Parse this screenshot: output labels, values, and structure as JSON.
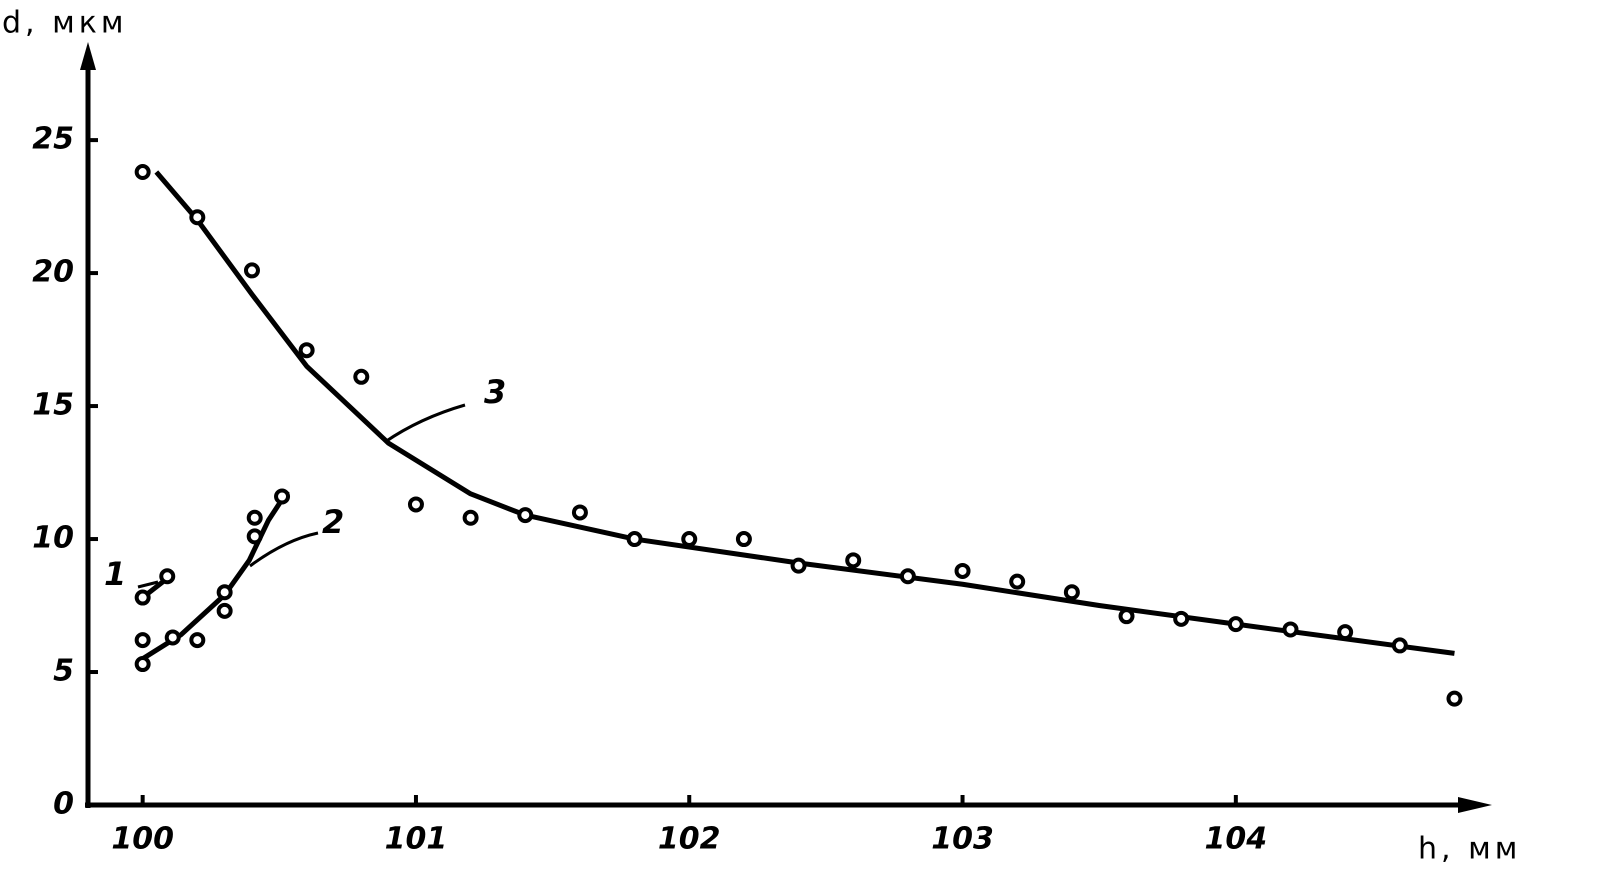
{
  "chart_data": {
    "type": "scatter",
    "x_label": "h, мм",
    "y_label": "d, мкм",
    "xlim": [
      99.8,
      104.93
    ],
    "ylim": [
      0,
      28.2
    ],
    "xticks": [
      100,
      101,
      102,
      103,
      104
    ],
    "yticks": [
      0,
      5,
      10,
      15,
      20,
      25
    ],
    "color": "#000000",
    "series": [
      {
        "name": "1",
        "points": {
          "x": [
            100.0,
            100.09
          ],
          "values": [
            7.8,
            8.6
          ]
        },
        "curve": {
          "x": [
            100.0,
            100.1
          ],
          "values": [
            7.8,
            8.6
          ]
        }
      },
      {
        "name": "2",
        "points": {
          "x": [
            100.0,
            100.0,
            100.11,
            100.2,
            100.3,
            100.3,
            100.41,
            100.41,
            100.51
          ],
          "values": [
            6.2,
            5.3,
            6.3,
            6.2,
            7.3,
            8.0,
            10.8,
            10.1,
            11.6
          ]
        },
        "curve": {
          "x": [
            100.0,
            100.14,
            100.3,
            100.39,
            100.46,
            100.53
          ],
          "values": [
            5.5,
            6.4,
            7.9,
            9.2,
            10.7,
            11.8
          ]
        }
      },
      {
        "name": "3",
        "points": {
          "x": [
            100.0,
            100.2,
            100.4,
            100.6,
            100.8,
            101.0,
            101.2,
            101.4,
            101.6,
            101.8,
            102.0,
            102.2,
            102.4,
            102.6,
            102.8,
            103.0,
            103.2,
            103.4,
            103.6,
            103.8,
            104.0,
            104.2,
            104.4,
            104.6,
            104.8
          ],
          "values": [
            23.8,
            22.1,
            20.1,
            17.1,
            16.1,
            11.3,
            10.8,
            10.9,
            11.0,
            10.0,
            10.0,
            10.0,
            9.0,
            9.2,
            8.6,
            8.8,
            8.4,
            8.0,
            7.1,
            7.0,
            6.8,
            6.6,
            6.5,
            6.0,
            4.0
          ]
        },
        "curve": {
          "x": [
            100.05,
            100.2,
            100.4,
            100.6,
            100.9,
            101.2,
            101.4,
            101.8,
            102.4,
            103.0,
            103.5,
            104.0,
            104.8
          ],
          "values": [
            23.8,
            22.0,
            19.2,
            16.5,
            13.6,
            11.7,
            10.9,
            10.0,
            9.1,
            8.3,
            7.5,
            6.8,
            5.7
          ]
        }
      }
    ]
  }
}
